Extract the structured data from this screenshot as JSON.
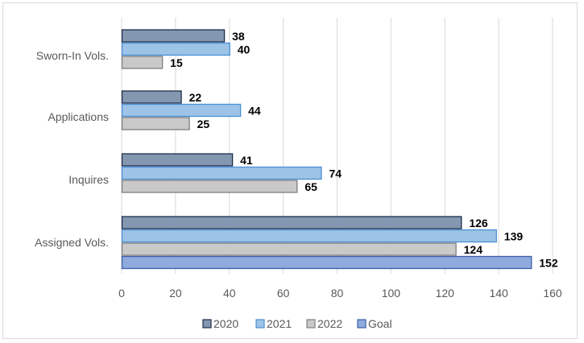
{
  "chart_data": {
    "type": "bar",
    "orientation": "horizontal",
    "categories": [
      "Sworn-In Vols.",
      "Applications",
      "Inquires",
      "Assigned Vols."
    ],
    "series": [
      {
        "name": "2020",
        "values": [
          38,
          22,
          41,
          126
        ],
        "fill": "#8497b0",
        "stroke": "#1f2d4a"
      },
      {
        "name": "2021",
        "values": [
          40,
          44,
          74,
          139
        ],
        "fill": "#9dc3e6",
        "stroke": "#4a8fd6"
      },
      {
        "name": "2022",
        "values": [
          15,
          25,
          65,
          124
        ],
        "fill": "#c9c9c9",
        "stroke": "#7f7f7f"
      },
      {
        "name": "Goal",
        "values": [
          null,
          null,
          null,
          152
        ],
        "fill": "#8faadc",
        "stroke": "#3a5fa8"
      }
    ],
    "xlim": [
      0,
      160
    ],
    "xticks": [
      "0",
      "20",
      "40",
      "60",
      "80",
      "100",
      "120",
      "140",
      "160"
    ],
    "grid": true,
    "legend_position": "bottom",
    "data_labels": true
  }
}
